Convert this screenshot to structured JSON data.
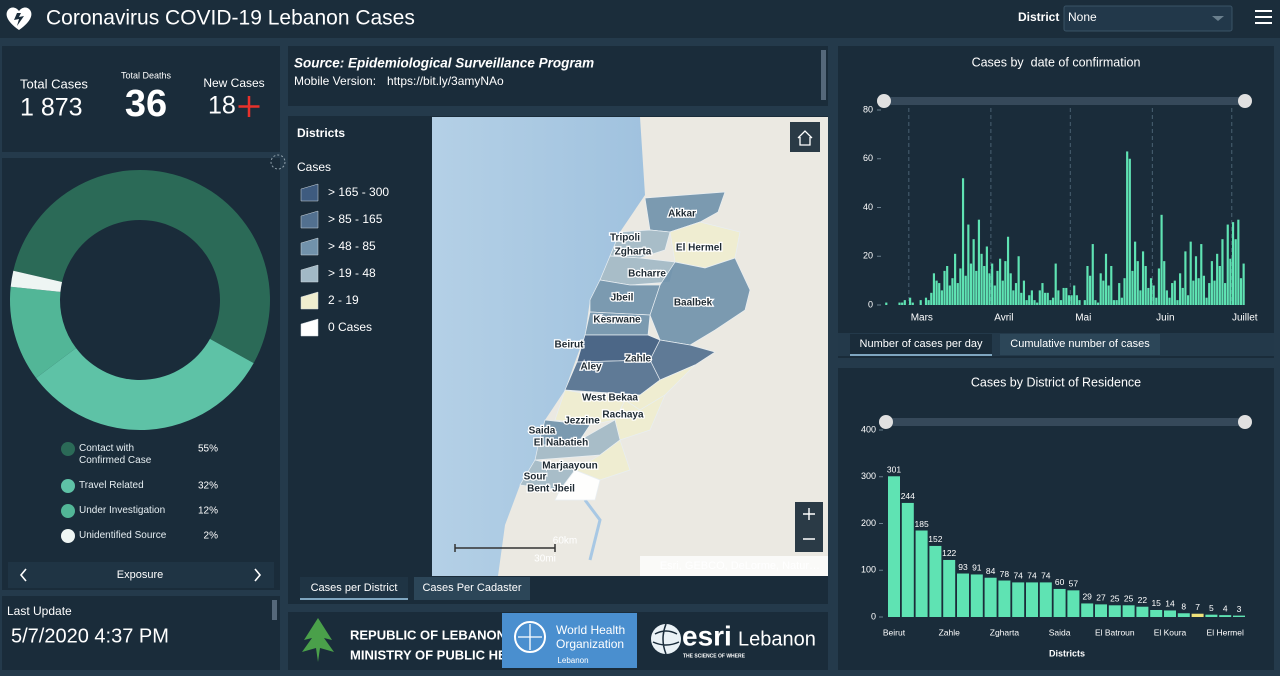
{
  "header": {
    "title": "Coronavirus COVID-19 Lebanon Cases",
    "filter_label": "District",
    "filter_value": "None"
  },
  "stats": [
    {
      "label": "Total Cases",
      "value": "1 873"
    },
    {
      "label": "Total Deaths",
      "value": "36"
    },
    {
      "label": "New Cases",
      "value": "18"
    }
  ],
  "source": {
    "title": "Source: Epidemiological Surveillance Program",
    "mobile_label": "Mobile Version:",
    "mobile_link": "https://bit.ly/3amyNAo"
  },
  "map": {
    "legend_title": "Districts",
    "legend_subtitle": "Cases",
    "classes": [
      {
        "label": "> 165 - 300",
        "color": "#3e5b7f"
      },
      {
        "label": "> 85 - 165",
        "color": "#52708f"
      },
      {
        "label": "> 48 - 85",
        "color": "#7192ab"
      },
      {
        "label": "> 19 - 48",
        "color": "#a2b9c6"
      },
      {
        "label": "2 - 19",
        "color": "#efedcf"
      },
      {
        "label": "0 Cases",
        "color": "#ffffff"
      }
    ],
    "labels": [
      "Akkar",
      "Tripoli",
      "Zgharta",
      "El Hermel",
      "Bcharre",
      "Jbeil",
      "Baalbek",
      "Kesrwane",
      "Beirut",
      "Zahle",
      "Aley",
      "West Bekaa",
      "Rachaya",
      "Jezzine",
      "Saida",
      "El Nabatieh",
      "Marjaayoun",
      "Sour",
      "Bent Jbeil"
    ],
    "scale": [
      "60km",
      "30mi"
    ],
    "attribution": "Esri, GEBCO, DeLorme, Natur…",
    "tabs": [
      "Cases per District",
      "Cases Per Cadaster"
    ]
  },
  "last_update": {
    "label": "Last Update",
    "value": "5/7/2020 4:37 PM"
  },
  "logos": {
    "moph": [
      "REPUBLIC OF LEBANON",
      "MINISTRY OF PUBLIC HEALTH"
    ],
    "who": [
      "World Health",
      "Organization",
      "Lebanon"
    ],
    "esri": [
      "esri",
      "Lebanon",
      "THE SCIENCE OF WHERE"
    ]
  },
  "daily_tabs": [
    "Number of cases per day",
    "Cumulative number of cases"
  ],
  "chart_data": [
    {
      "type": "pie",
      "categories": [
        "Contact with Confirmed Case",
        "Travel Related",
        "Under Investigation",
        "Unidentified Source"
      ],
      "values": [
        55,
        32,
        12,
        2
      ],
      "value_labels": [
        "55%",
        "32%",
        "12%",
        "2%"
      ],
      "colors": [
        "#2b6a57",
        "#5ec2a6",
        "#52b697",
        "#eef5f3"
      ],
      "footer": "Exposure"
    },
    {
      "type": "bar",
      "title": "Cases by  date of confirmation",
      "categories": [
        null,
        null,
        null,
        null,
        null,
        null,
        null,
        null,
        null,
        "Mars",
        null,
        null,
        null,
        null,
        null,
        null,
        null,
        null,
        null,
        null,
        null,
        null,
        null,
        null,
        null,
        null,
        null,
        null,
        null,
        null,
        null,
        null,
        null,
        null,
        null,
        null,
        null,
        null,
        null,
        null,
        "Avril",
        null,
        null,
        null,
        null,
        null,
        null,
        null,
        null,
        null,
        null,
        null,
        null,
        null,
        null,
        null,
        null,
        null,
        null,
        null,
        null,
        null,
        null,
        null,
        null,
        null,
        null,
        null,
        null,
        null,
        "Mai",
        null,
        null,
        null,
        null,
        null,
        null,
        null,
        null,
        null,
        null,
        null,
        null,
        null,
        null,
        null,
        null,
        null,
        null,
        null,
        null,
        null,
        null,
        null,
        null,
        null,
        null,
        null,
        null,
        null,
        null,
        "Juin",
        null,
        null,
        null,
        null,
        null,
        null,
        null,
        null,
        null,
        null,
        null,
        null,
        null,
        null,
        null,
        null,
        null,
        null,
        null,
        null,
        null,
        null,
        null,
        null,
        null,
        null,
        null,
        null,
        null,
        "Juillet",
        null,
        null,
        null,
        null
      ],
      "values": [
        1,
        0,
        0,
        0,
        0,
        1,
        1,
        2,
        0,
        3,
        1,
        0,
        0,
        2,
        0,
        3,
        2,
        5,
        13,
        10,
        9,
        6,
        14,
        16,
        8,
        11,
        21,
        9,
        15,
        52,
        12,
        33,
        17,
        27,
        14,
        35,
        21,
        16,
        24,
        13,
        17,
        8,
        14,
        19,
        10,
        18,
        28,
        13,
        6,
        9,
        20,
        5,
        10,
        2,
        4,
        6,
        2,
        1,
        6,
        9,
        5,
        5,
        2,
        3,
        17,
        6,
        2,
        7,
        7,
        4,
        4,
        8,
        4,
        2,
        0,
        2,
        16,
        12,
        25,
        2,
        1,
        13,
        10,
        21,
        8,
        16,
        2,
        2,
        9,
        3,
        11,
        63,
        60,
        14,
        26,
        18,
        6,
        22,
        16,
        7,
        11,
        8,
        3,
        15,
        37,
        18,
        6,
        3,
        9,
        10,
        2,
        13,
        7,
        22,
        4,
        26,
        10,
        20,
        11,
        25,
        12,
        3,
        9,
        18,
        10,
        21,
        16,
        27,
        9,
        33,
        19,
        34,
        27,
        35,
        11,
        17
      ],
      "color": "#5fe3b3",
      "ylim": [
        0,
        80
      ],
      "yticks": [
        0,
        20,
        40,
        60,
        80
      ]
    },
    {
      "type": "bar",
      "title": "Cases by District of Residence",
      "x_label": "Districts",
      "categories": [
        "Beirut",
        null,
        null,
        null,
        "Zahle",
        null,
        null,
        null,
        "Zgharta",
        null,
        null,
        null,
        "Saida",
        null,
        null,
        null,
        "El Batroun",
        null,
        null,
        null,
        "El Koura",
        null,
        null,
        null,
        "El Hermel",
        null
      ],
      "values": [
        301,
        244,
        185,
        152,
        122,
        93,
        91,
        84,
        78,
        74,
        74,
        74,
        60,
        57,
        29,
        27,
        25,
        25,
        22,
        15,
        14,
        8,
        7,
        5,
        4,
        3
      ],
      "colors": [
        "#5fe3b3",
        "#5fe3b3",
        "#5fe3b3",
        "#5fe3b3",
        "#5fe3b3",
        "#5fe3b3",
        "#5fe3b3",
        "#5fe3b3",
        "#5fe3b3",
        "#5fe3b3",
        "#5fe3b3",
        "#5fe3b3",
        "#5fe3b3",
        "#5fe3b3",
        "#5fe3b3",
        "#5fe3b3",
        "#5fe3b3",
        "#5fe3b3",
        "#5fe3b3",
        "#5fe3b3",
        "#5fe3b3",
        "#5fe3b3",
        "#efe27a",
        "#5fe3b3",
        "#5fe3b3",
        "#5fe3b3"
      ],
      "ylim": [
        0,
        400
      ],
      "yticks": [
        0,
        100,
        200,
        300,
        400
      ]
    }
  ]
}
